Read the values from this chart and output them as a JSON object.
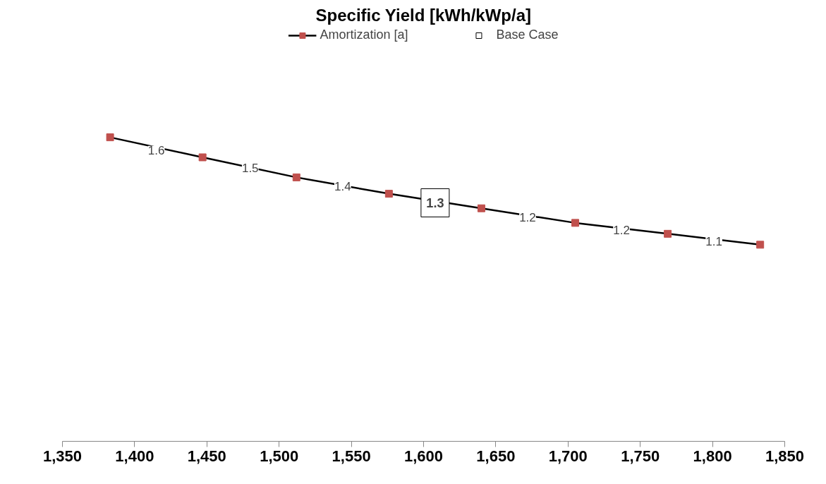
{
  "chart_data": {
    "type": "line",
    "title": "Specific Yield [kWh/kWp/a]",
    "legend": "top",
    "line_style": "solid",
    "grid": false,
    "tick_labels": "x",
    "xlim": [
      1350,
      1850
    ],
    "xticks": [
      {
        "value": 1350,
        "label": "1,350"
      },
      {
        "value": 1400,
        "label": "1,400"
      },
      {
        "value": 1450,
        "label": "1,450"
      },
      {
        "value": 1500,
        "label": "1,500"
      },
      {
        "value": 1550,
        "label": "1,550"
      },
      {
        "value": 1600,
        "label": "1,600"
      },
      {
        "value": 1650,
        "label": "1,650"
      },
      {
        "value": 1700,
        "label": "1,700"
      },
      {
        "value": 1750,
        "label": "1,750"
      },
      {
        "value": 1800,
        "label": "1,800"
      },
      {
        "value": 1850,
        "label": "1,850"
      }
    ],
    "series": [
      {
        "name": "Amortization [a]",
        "color": "#c0504d",
        "marker": "square",
        "x": [
          1383,
          1447,
          1512,
          1576,
          1640,
          1705,
          1769,
          1833
        ],
        "values": [
          1.67,
          1.56,
          1.45,
          1.36,
          1.28,
          1.2,
          1.14,
          1.08
        ]
      },
      {
        "type": "scatter",
        "color": "#ffffff",
        "x": [
          1415,
          1480,
          1544,
          1672,
          1737,
          1801
        ],
        "values": [
          1.6,
          1.5,
          1.4,
          1.23,
          1.16,
          1.1
        ],
        "value_labels": [
          "1.6",
          "1.5",
          "1.4",
          "1.2",
          "1.2",
          "1.1"
        ]
      },
      {
        "name": "Base Case",
        "type": "scatter",
        "color": "#ffffff",
        "marker": "square",
        "x": [
          1608
        ],
        "values": [
          1.31
        ],
        "value_labels": [
          "1.3"
        ]
      }
    ]
  }
}
